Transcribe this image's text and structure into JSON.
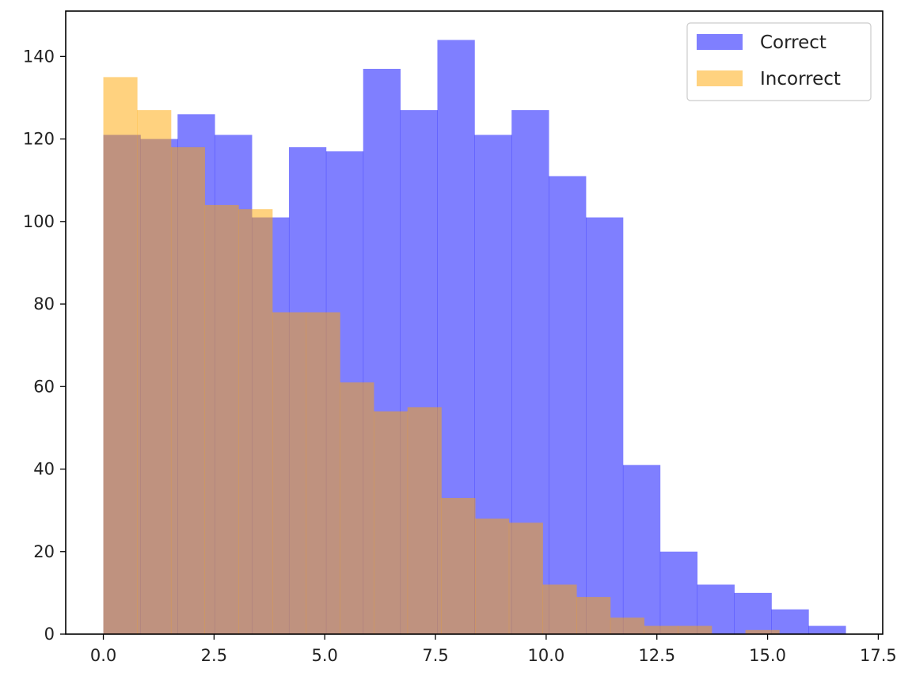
{
  "chart_data": {
    "type": "bar",
    "subtype": "overlapping-histogram",
    "title": "",
    "xlabel": "",
    "ylabel": "",
    "xlim": [
      -0.85,
      17.6
    ],
    "ylim": [
      0,
      151
    ],
    "xticks": [
      0.0,
      2.5,
      5.0,
      7.5,
      10.0,
      12.5,
      15.0,
      17.5
    ],
    "xtick_labels": [
      "0.0",
      "2.5",
      "5.0",
      "7.5",
      "10.0",
      "12.5",
      "15.0",
      "17.5"
    ],
    "yticks": [
      0,
      20,
      40,
      60,
      80,
      100,
      120,
      140
    ],
    "ytick_labels": [
      "0",
      "20",
      "40",
      "60",
      "80",
      "100",
      "120",
      "140"
    ],
    "grid": false,
    "legend_position": "top-right",
    "series": [
      {
        "name": "Correct",
        "color": "#0000ff",
        "opacity": 0.5,
        "bin_edges": [
          0.0,
          0.8382,
          1.6763,
          2.5145,
          3.3526,
          4.1908,
          5.0289,
          5.8671,
          6.7053,
          7.5434,
          8.3816,
          9.2197,
          10.0579,
          10.8961,
          11.7342,
          12.5724,
          13.4105,
          14.2487,
          15.0868,
          15.925,
          16.7632
        ],
        "values": [
          121,
          120,
          126,
          121,
          101,
          118,
          117,
          137,
          127,
          144,
          121,
          127,
          111,
          101,
          41,
          20,
          12,
          10,
          6,
          2
        ]
      },
      {
        "name": "Incorrect",
        "color": "#ffa500",
        "opacity": 0.5,
        "bin_edges": [
          0.0,
          0.7631,
          1.5263,
          2.2894,
          3.0526,
          3.8157,
          4.5789,
          5.342,
          6.1052,
          6.8683,
          7.6315,
          8.3946,
          9.1578,
          9.9209,
          10.6841,
          11.4472,
          12.2104,
          12.9735,
          13.7367,
          14.4998,
          15.263
        ],
        "values": [
          135,
          127,
          118,
          104,
          103,
          78,
          78,
          61,
          54,
          55,
          33,
          28,
          27,
          12,
          9,
          4,
          2,
          2,
          0,
          1
        ]
      }
    ]
  }
}
